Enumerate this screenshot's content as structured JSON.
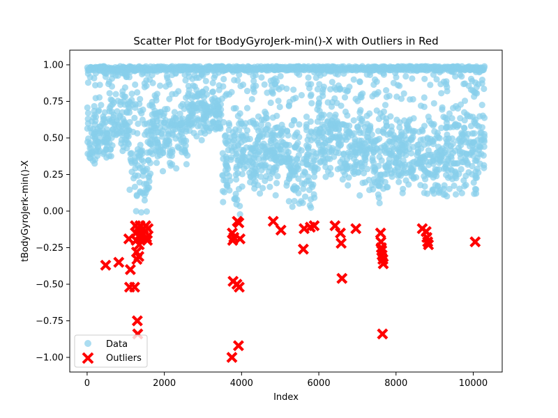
{
  "chart_data": {
    "type": "scatter",
    "title": "Scatter Plot for tBodyGyroJerk-min()-X with Outliers in Red",
    "xlabel": "Index",
    "ylabel": "tBodyGyroJerk-min()-X",
    "xlim": [
      -450,
      10750
    ],
    "ylim": [
      -1.1,
      1.1
    ],
    "xticks": [
      0,
      2000,
      4000,
      6000,
      8000,
      10000
    ],
    "yticks": [
      -1.0,
      -0.75,
      -0.5,
      -0.25,
      0.0,
      0.25,
      0.5,
      0.75,
      1.0
    ],
    "xtick_labels": [
      "0",
      "2000",
      "4000",
      "6000",
      "8000",
      "10000"
    ],
    "ytick_labels": [
      "−1.00",
      "−0.75",
      "−0.50",
      "−0.25",
      "0.00",
      "0.25",
      "0.50",
      "0.75",
      "1.00"
    ],
    "grid": false,
    "legend_position": "lower-left",
    "series": [
      {
        "name": "Data",
        "marker": "circle",
        "color": "#87ceeb",
        "generated_density": {
          "count_estimate": 10299,
          "x_range": [
            0,
            10299
          ],
          "top_band": 0.99,
          "segments": [
            {
              "x": [
                0,
                600
              ],
              "min": 0.3,
              "max": 0.75
            },
            {
              "x": [
                600,
                1100
              ],
              "min": 0.3,
              "max": 0.9
            },
            {
              "x": [
                1100,
                1650
              ],
              "min": -0.1,
              "max": 0.8
            },
            {
              "x": [
                1650,
                2600
              ],
              "min": 0.25,
              "max": 0.85
            },
            {
              "x": [
                2600,
                3000
              ],
              "min": 0.45,
              "max": 0.9
            },
            {
              "x": [
                3000,
                3500
              ],
              "min": 0.5,
              "max": 0.85
            },
            {
              "x": [
                3500,
                4000
              ],
              "min": -0.05,
              "max": 0.75
            },
            {
              "x": [
                4000,
                4600
              ],
              "min": 0.1,
              "max": 0.75
            },
            {
              "x": [
                4600,
                5200
              ],
              "min": 0.1,
              "max": 0.7
            },
            {
              "x": [
                5200,
                5900
              ],
              "min": -0.05,
              "max": 0.7
            },
            {
              "x": [
                5900,
                6600
              ],
              "min": 0.2,
              "max": 0.8
            },
            {
              "x": [
                6600,
                7400
              ],
              "min": 0.1,
              "max": 0.75
            },
            {
              "x": [
                7400,
                7700
              ],
              "min": 0.0,
              "max": 0.75
            },
            {
              "x": [
                7700,
                8600
              ],
              "min": 0.1,
              "max": 0.7
            },
            {
              "x": [
                8600,
                9300
              ],
              "min": 0.0,
              "max": 0.7
            },
            {
              "x": [
                9300,
                10299
              ],
              "min": 0.05,
              "max": 0.8
            }
          ]
        }
      },
      {
        "name": "Outliers",
        "marker": "x",
        "color": "#ff0000",
        "points": [
          [
            480,
            -0.37
          ],
          [
            820,
            -0.35
          ],
          [
            1080,
            -0.19
          ],
          [
            1100,
            -0.52
          ],
          [
            1120,
            -0.4
          ],
          [
            1230,
            -0.52
          ],
          [
            1250,
            -0.1
          ],
          [
            1260,
            -0.15
          ],
          [
            1270,
            -0.2
          ],
          [
            1280,
            -0.28
          ],
          [
            1290,
            -0.33
          ],
          [
            1300,
            -0.75
          ],
          [
            1310,
            -0.84
          ],
          [
            1320,
            -0.12
          ],
          [
            1340,
            -0.31
          ],
          [
            1350,
            -0.23
          ],
          [
            1370,
            -0.1
          ],
          [
            1380,
            -0.16
          ],
          [
            1400,
            -0.19
          ],
          [
            1460,
            -0.12
          ],
          [
            1500,
            -0.14
          ],
          [
            1520,
            -0.1
          ],
          [
            1540,
            -0.18
          ],
          [
            1560,
            -0.2
          ],
          [
            1580,
            -0.12
          ],
          [
            3750,
            -1.0
          ],
          [
            3760,
            -0.15
          ],
          [
            3770,
            -0.2
          ],
          [
            3780,
            -0.48
          ],
          [
            3800,
            -0.18
          ],
          [
            3880,
            -0.5
          ],
          [
            3890,
            -0.07
          ],
          [
            3920,
            -0.92
          ],
          [
            3930,
            -0.08
          ],
          [
            3940,
            -0.52
          ],
          [
            3960,
            -0.19
          ],
          [
            4820,
            -0.07
          ],
          [
            5020,
            -0.13
          ],
          [
            5600,
            -0.26
          ],
          [
            5620,
            -0.12
          ],
          [
            5780,
            -0.11
          ],
          [
            5880,
            -0.1
          ],
          [
            6420,
            -0.1
          ],
          [
            6560,
            -0.15
          ],
          [
            6580,
            -0.22
          ],
          [
            6600,
            -0.46
          ],
          [
            6960,
            -0.12
          ],
          [
            7600,
            -0.15
          ],
          [
            7610,
            -0.21
          ],
          [
            7620,
            -0.25
          ],
          [
            7630,
            -0.27
          ],
          [
            7640,
            -0.3
          ],
          [
            7650,
            -0.84
          ],
          [
            7660,
            -0.33
          ],
          [
            7670,
            -0.36
          ],
          [
            8680,
            -0.12
          ],
          [
            8780,
            -0.14
          ],
          [
            8800,
            -0.18
          ],
          [
            8820,
            -0.21
          ],
          [
            8840,
            -0.23
          ],
          [
            10050,
            -0.21
          ]
        ]
      }
    ]
  }
}
